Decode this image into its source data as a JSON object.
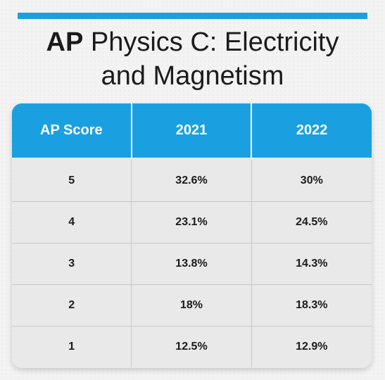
{
  "title": {
    "bold": "AP",
    "rest_line1": " Physics C: Electricity",
    "line2": "and Magnetism"
  },
  "colors": {
    "accent": "#1aa0e0",
    "text": "#1b1b1b",
    "header_text": "#ffffff",
    "table_bg": "#e9e9ea"
  },
  "table": {
    "headers": [
      "AP Score",
      "2021",
      "2022"
    ],
    "rows": [
      {
        "score": "5",
        "y2021": "32.6%",
        "y2022": "30%"
      },
      {
        "score": "4",
        "y2021": "23.1%",
        "y2022": "24.5%"
      },
      {
        "score": "3",
        "y2021": "13.8%",
        "y2022": "14.3%"
      },
      {
        "score": "2",
        "y2021": "18%",
        "y2022": "18.3%"
      },
      {
        "score": "1",
        "y2021": "12.5%",
        "y2022": "12.9%"
      }
    ]
  }
}
